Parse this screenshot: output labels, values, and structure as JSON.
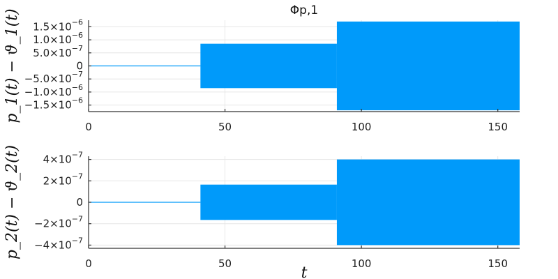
{
  "chart_data": [
    {
      "type": "area",
      "title": "Φp,1",
      "ylabel": "p_1(t) − ϑ_1(t)",
      "xlabel": "",
      "xlim": [
        0,
        158
      ],
      "ylim": [
        -1.75e-06,
        1.75e-06
      ],
      "grid": true,
      "legend": "none",
      "x_ticks": [
        {
          "value": 0,
          "label": "0"
        },
        {
          "value": 50,
          "label": "50"
        },
        {
          "value": 100,
          "label": "100"
        },
        {
          "value": 150,
          "label": "150"
        }
      ],
      "y_ticks": [
        {
          "value": 1.5e-06,
          "mant": "1.5×10",
          "exp": "−6"
        },
        {
          "value": 1e-06,
          "mant": "1.0×10",
          "exp": "−6"
        },
        {
          "value": 5e-07,
          "mant": "5.0×10",
          "exp": "−7"
        },
        {
          "value": 0,
          "mant": "0",
          "exp": ""
        },
        {
          "value": -5e-07,
          "mant": "−5.0×10",
          "exp": "−7"
        },
        {
          "value": -1e-06,
          "mant": "−1.0×10",
          "exp": "−6"
        },
        {
          "value": -1.5e-06,
          "mant": "−1.5×10",
          "exp": "−6"
        }
      ],
      "series": [
        {
          "color": "#009AFA",
          "segments": [
            {
              "x_start": 0,
              "x_end": 41,
              "amplitude": 0
            },
            {
              "x_start": 41,
              "x_end": 91,
              "amplitude": 8.5e-07
            },
            {
              "x_start": 91,
              "x_end": 158,
              "amplitude": 1.7e-06
            }
          ]
        }
      ]
    },
    {
      "type": "area",
      "title": "",
      "ylabel": "p_2(t) − ϑ_2(t)",
      "xlabel": "t",
      "xlim": [
        0,
        158
      ],
      "ylim": [
        -4.3e-07,
        4.3e-07
      ],
      "grid": true,
      "legend": "none",
      "x_ticks": [
        {
          "value": 0,
          "label": "0"
        },
        {
          "value": 50,
          "label": "50"
        },
        {
          "value": 100,
          "label": "100"
        },
        {
          "value": 150,
          "label": "150"
        }
      ],
      "y_ticks": [
        {
          "value": 4e-07,
          "mant": "4×10",
          "exp": "−7"
        },
        {
          "value": 2e-07,
          "mant": "2×10",
          "exp": "−7"
        },
        {
          "value": 0,
          "mant": "0",
          "exp": ""
        },
        {
          "value": -2e-07,
          "mant": "−2×10",
          "exp": "−7"
        },
        {
          "value": -4e-07,
          "mant": "−4×10",
          "exp": "−7"
        }
      ],
      "series": [
        {
          "color": "#009AFA",
          "segments": [
            {
              "x_start": 0,
              "x_end": 41,
              "amplitude": 0
            },
            {
              "x_start": 41,
              "x_end": 91,
              "amplitude": 1.65e-07
            },
            {
              "x_start": 91,
              "x_end": 158,
              "amplitude": 4e-07
            }
          ]
        }
      ]
    }
  ]
}
